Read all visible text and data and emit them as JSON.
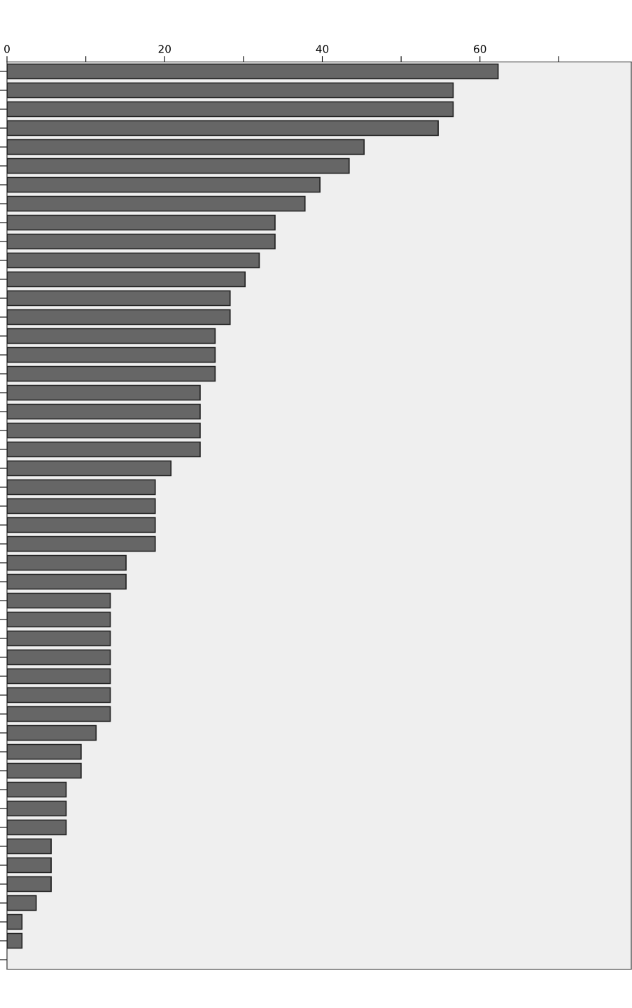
{
  "chart_data": {
    "type": "bar",
    "orientation": "horizontal",
    "categories": [
      null,
      null,
      null,
      null,
      null,
      null,
      null,
      null,
      null,
      null,
      null,
      null,
      null,
      null,
      null,
      null,
      null,
      null,
      null,
      null,
      null,
      null,
      null,
      null,
      null,
      null,
      null,
      null,
      null,
      null,
      null,
      null,
      null,
      null,
      null,
      null,
      null,
      null,
      null,
      null,
      null,
      null,
      null,
      null,
      null,
      null,
      null,
      null
    ],
    "values": [
      62.3,
      56.6,
      56.6,
      54.7,
      45.3,
      43.4,
      39.7,
      37.8,
      34.0,
      34.0,
      32.0,
      30.2,
      28.3,
      28.3,
      26.4,
      26.4,
      26.4,
      24.5,
      24.5,
      24.5,
      24.5,
      20.8,
      18.8,
      18.8,
      18.8,
      18.8,
      15.1,
      15.1,
      13.1,
      13.1,
      13.1,
      13.1,
      13.1,
      13.1,
      13.1,
      11.3,
      9.4,
      9.4,
      7.5,
      7.5,
      7.5,
      5.6,
      5.6,
      5.6,
      3.7,
      1.9,
      1.9,
      null
    ],
    "color": "#666666",
    "xlim": [
      0,
      79.2
    ],
    "xticks": [
      0,
      {
        "value": 10,
        "label": null
      },
      20,
      {
        "value": 30,
        "label": null
      },
      40,
      {
        "value": 50,
        "label": null
      },
      60,
      {
        "value": 70,
        "label": null
      }
    ],
    "grid": false,
    "legend": false
  }
}
